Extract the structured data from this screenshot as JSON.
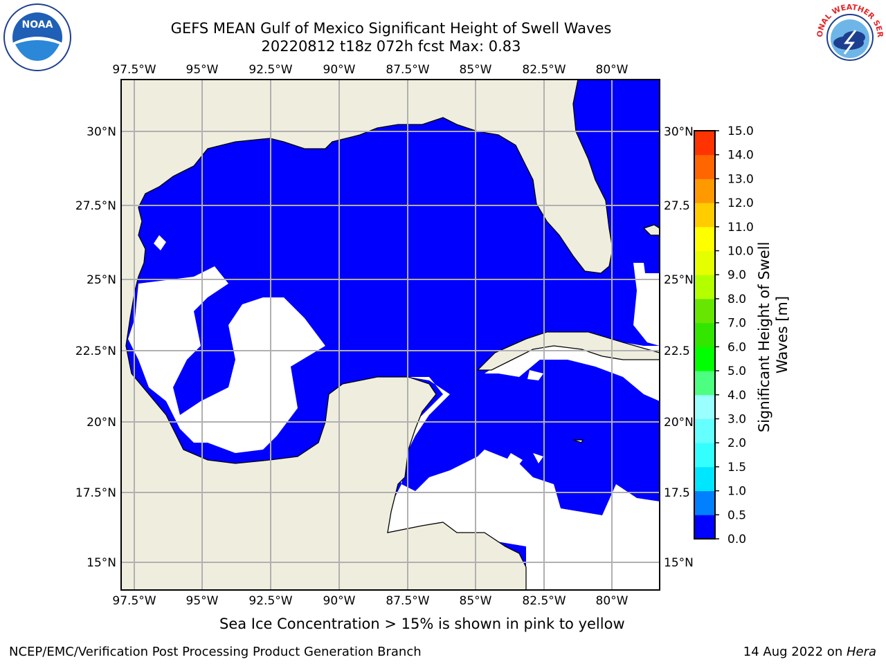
{
  "title": {
    "line1": "GEFS MEAN Gulf of Mexico Significant Height of Swell Waves",
    "line2": "20220812 t18z 072h fcst   Max: 0.83"
  },
  "logos": {
    "left": {
      "icon": "noaa-logo",
      "text": "NOAA"
    },
    "right": {
      "icon": "nws-logo",
      "text": "NATIONAL WEATHER SERVICE"
    }
  },
  "map": {
    "lon_range": [
      -98.5,
      -78.5
    ],
    "lat_range": [
      14.0,
      31.8
    ],
    "grid": true,
    "top_lon_ticks": [
      "97.5°W",
      "95°W",
      "92.5°W",
      "90°W",
      "87.5°W",
      "85°W",
      "82.5°W",
      "80°W"
    ],
    "bottom_lon_ticks": [
      "97.5°W",
      "95°W",
      "92.5°W",
      "90°W",
      "87.5°W",
      "85°W",
      "82.5°W",
      "80°W"
    ],
    "left_lat_ticks": [
      "30°N",
      "27.5°N",
      "25°N",
      "22.5°N",
      "20°N",
      "17.5°N",
      "15°N"
    ],
    "right_lat_ticks": [
      "30°N",
      "27.5",
      "25°N",
      "22.5",
      "20°N",
      "17.5",
      "15°N"
    ],
    "colors": {
      "land": "#efedde",
      "sea_low": "#0000ff",
      "sea_pacific": "#0080ff",
      "no_data": "#ffffff",
      "grid": "#b0b0b0"
    }
  },
  "colorbar": {
    "label": "Significant Height of Swell Waves [m]",
    "ticks": [
      "0.0",
      "0.5",
      "1.0",
      "1.5",
      "2.0",
      "3.0",
      "4.0",
      "5.0",
      "6.0",
      "7.0",
      "8.0",
      "9.0",
      "10.0",
      "11.0",
      "12.0",
      "13.0",
      "14.0",
      "15.0"
    ],
    "colors": [
      "#0000ff",
      "#0080ff",
      "#00e6ff",
      "#33ffff",
      "#66ffff",
      "#99ffff",
      "#4dff80",
      "#00ff00",
      "#33e600",
      "#66e600",
      "#b3ff00",
      "#e6ff00",
      "#ffff00",
      "#ffcc00",
      "#ff9900",
      "#ff6600",
      "#ff3300",
      "#ff0000"
    ]
  },
  "caption": "Sea Ice Concentration > 15% is shown in pink to yellow",
  "footer": {
    "left": "NCEP/EMC/Verification Post Processing Product Generation Branch",
    "right_prefix": "14 Aug 2022 on ",
    "right_host": "Hera"
  }
}
